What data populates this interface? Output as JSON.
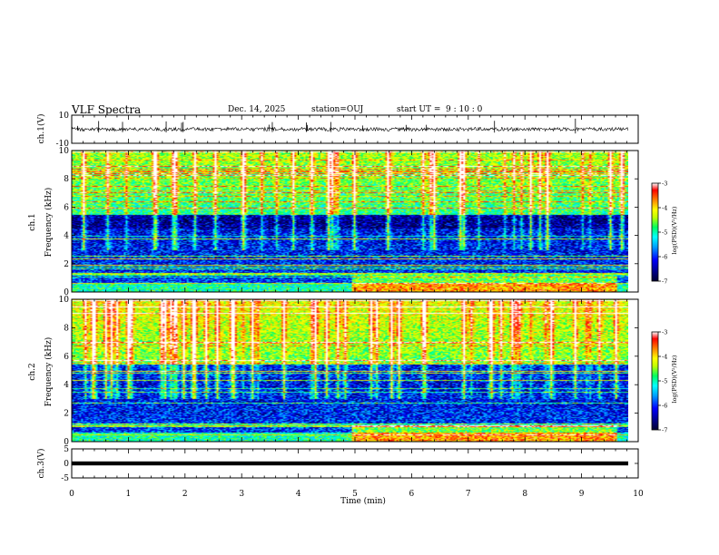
{
  "header": {
    "title": "VLF Spectra",
    "date": "Dec. 14, 2025",
    "station": "station=OUJ",
    "start_label": "start  UT =",
    "start_time": "9  : 10 : 0"
  },
  "chart_data": [
    {
      "type": "line",
      "panel": "ch1-waveform",
      "ylabel": "ch.1(V)",
      "ylim": [
        -10,
        10
      ],
      "yticks": [
        "10",
        "-10"
      ],
      "xlim": [
        0,
        10
      ],
      "baseline": 0
    },
    {
      "type": "heatmap",
      "panel": "ch1-spectrogram",
      "ylabel_top": "ch.1",
      "ylabel": "Frequency (kHz)",
      "ylim": [
        0,
        10
      ],
      "yticks": [
        "0",
        "2",
        "4",
        "6",
        "8",
        "10"
      ],
      "xlim": [
        0,
        10
      ],
      "colorbar": {
        "label": "log(PSD)(V²/Hz)",
        "range": [
          -7,
          -3
        ],
        "ticks": [
          "-3",
          "-4",
          "-5",
          "-6",
          "-7"
        ]
      }
    },
    {
      "type": "heatmap",
      "panel": "ch2-spectrogram",
      "ylabel_top": "ch.2",
      "ylabel": "Frequency (kHz)",
      "ylim": [
        0,
        10
      ],
      "yticks": [
        "0",
        "2",
        "4",
        "6",
        "8",
        "10"
      ],
      "xlim": [
        0,
        10
      ],
      "colorbar": {
        "label": "log(PSD)(V²/Hz)",
        "range": [
          -7,
          -3
        ],
        "ticks": [
          "-3",
          "-4",
          "-5",
          "-6",
          "-7"
        ]
      }
    },
    {
      "type": "line",
      "panel": "ch3-waveform",
      "ylabel": "ch.3(V)",
      "ylim": [
        -5,
        5
      ],
      "yticks": [
        "5",
        "0",
        "-5"
      ],
      "xlim": [
        0,
        10
      ],
      "baseline": 0
    }
  ],
  "xaxis": {
    "label": "Time  (min)",
    "ticks": [
      "0",
      "1",
      "2",
      "3",
      "4",
      "5",
      "6",
      "7",
      "8",
      "9",
      "10"
    ]
  },
  "colors": {
    "background": "#ffffff",
    "axes": "#000000",
    "colormap": [
      "#000030",
      "#00008b",
      "#0000ff",
      "#00a0ff",
      "#00ffff",
      "#00ff60",
      "#c0ff00",
      "#ffff00",
      "#ff8000",
      "#ff0000",
      "#ffffff"
    ]
  }
}
